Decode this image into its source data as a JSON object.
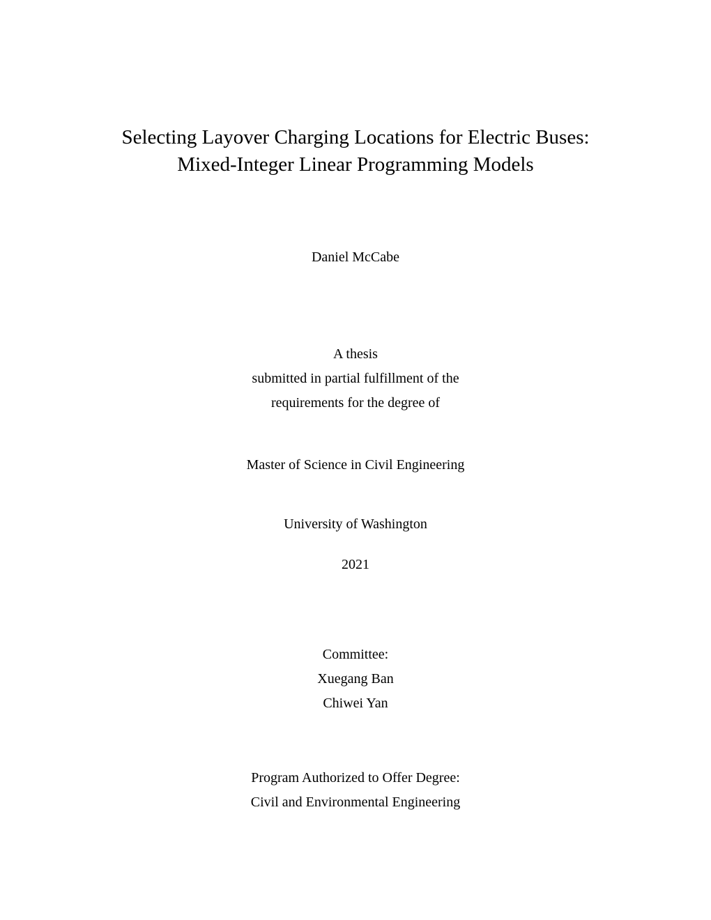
{
  "title": {
    "line1": "Selecting Layover Charging Locations for Electric Buses:",
    "line2": "Mixed-Integer Linear Programming Models"
  },
  "author": "Daniel McCabe",
  "thesis": {
    "line1": "A thesis",
    "line2": "submitted in partial fulfillment of the",
    "line3": "requirements for the degree of"
  },
  "degree": "Master of Science in Civil Engineering",
  "university": "University of Washington",
  "year": "2021",
  "committee": {
    "label": "Committee:",
    "member1": "Xuegang Ban",
    "member2": "Chiwei Yan"
  },
  "program": {
    "line1": "Program Authorized to Offer Degree:",
    "line2": "Civil and Environmental Engineering"
  },
  "colors": {
    "background": "#ffffff",
    "text": "#000000"
  },
  "typography": {
    "title_fontsize": 29,
    "body_fontsize": 20,
    "font_family": "Computer Modern"
  }
}
